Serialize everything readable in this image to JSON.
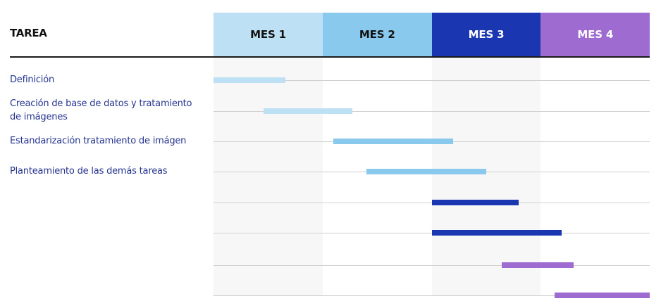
{
  "header": {
    "task_column": "TAREA",
    "months": [
      {
        "label": "MES 1",
        "bg": "#bde0f4",
        "fg": "#111111"
      },
      {
        "label": "MES 2",
        "bg": "#89c9ee",
        "fg": "#111111"
      },
      {
        "label": "MES 3",
        "bg": "#1a36b0",
        "fg": "#ffffff"
      },
      {
        "label": "MES 4",
        "bg": "#9e6bd0",
        "fg": "#ffffff"
      }
    ]
  },
  "colors": {
    "task_label": "#25348f",
    "rule": "#1a1a1a",
    "gridline": "#d0d0d0",
    "column_shade": "#f7f7f7"
  },
  "tasks": [
    {
      "label": "Definición",
      "start_month": 1.0,
      "end_month": 1.66,
      "color": "#bde0f4"
    },
    {
      "label": "Creación de base de datos y tratamiento de imágenes",
      "start_month": 1.46,
      "end_month": 2.27,
      "color": "#bde0f4"
    },
    {
      "label": "Estandarización tratamiento de imágen",
      "start_month": 2.1,
      "end_month": 3.2,
      "color": "#89c9ee"
    },
    {
      "label": "Planteamiento de las demás tareas",
      "start_month": 2.4,
      "end_month": 3.5,
      "color": "#89c9ee"
    },
    {
      "label": "",
      "start_month": 3.0,
      "end_month": 3.8,
      "color": "#1a36b0"
    },
    {
      "label": "",
      "start_month": 3.0,
      "end_month": 4.19,
      "color": "#1a36b0"
    },
    {
      "label": "",
      "start_month": 3.64,
      "end_month": 4.3,
      "color": "#9e6bd0"
    },
    {
      "label": "",
      "start_month": 4.13,
      "end_month": 5.0,
      "color": "#9e6bd0"
    }
  ]
}
